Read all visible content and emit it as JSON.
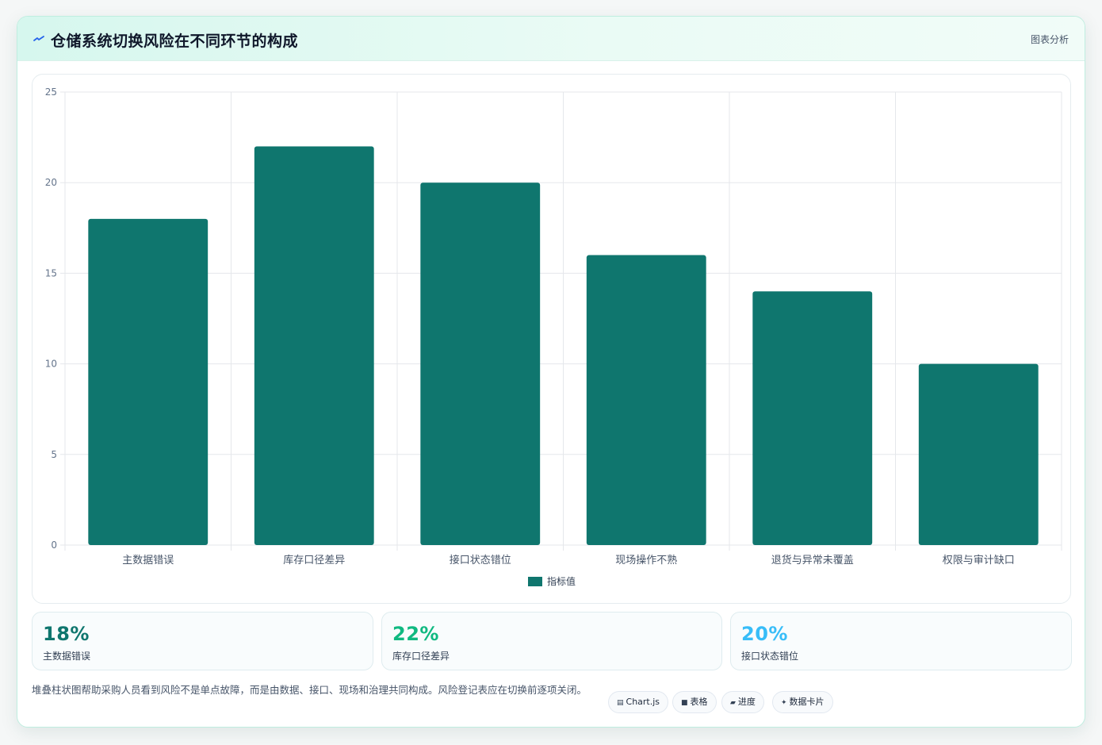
{
  "header": {
    "icon": "lightning-icon",
    "title": "仓储系统切换风险在不同环节的构成",
    "tag": "图表分析"
  },
  "chart_data": {
    "type": "bar",
    "categories": [
      "主数据错误",
      "库存口径差异",
      "接口状态错位",
      "现场操作不熟",
      "退货与异常未覆盖",
      "权限与审计缺口"
    ],
    "series": [
      {
        "name": "指标值",
        "values": [
          18,
          22,
          20,
          16,
          14,
          10
        ],
        "color": "#0f766e"
      }
    ],
    "ylim": [
      0,
      25
    ],
    "yticks": [
      0,
      5,
      10,
      15,
      20,
      25
    ],
    "grid": true,
    "legend": "bottom"
  },
  "stats": [
    {
      "value": "18%",
      "label": "主数据错误",
      "color": "#0f766e"
    },
    {
      "value": "22%",
      "label": "库存口径差异",
      "color": "#10b981"
    },
    {
      "value": "20%",
      "label": "接口状态错位",
      "color": "#38bdf8"
    }
  ],
  "footnote": "堆叠柱状图帮助采购人员看到风险不是单点故障，而是由数据、接口、现场和治理共同构成。风险登记表应在切换前逐项关闭。",
  "chips": [
    {
      "icon": "▤",
      "label": "Chart.js"
    },
    {
      "icon": "■",
      "label": "表格"
    },
    {
      "icon": "▰",
      "label": "进度"
    },
    {
      "icon": "✦",
      "label": "数据卡片"
    }
  ]
}
